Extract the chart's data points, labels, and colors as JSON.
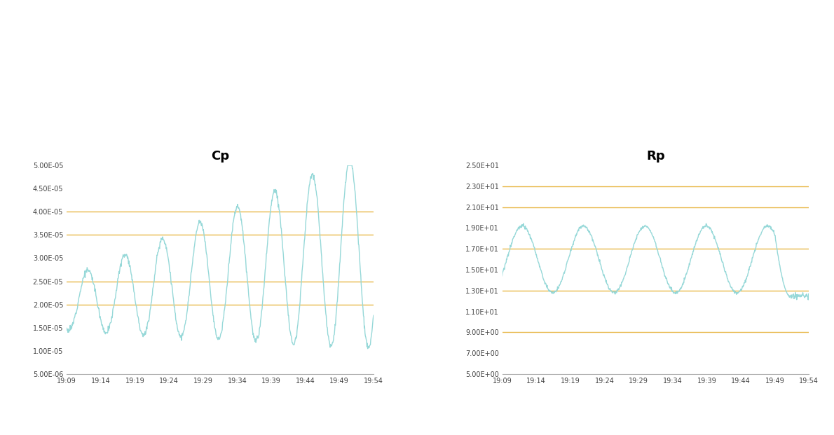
{
  "cp_title": "Cp",
  "rp_title": "Rp",
  "time_labels": [
    "19:09",
    "19:14",
    "19:19",
    "19:24",
    "19:29",
    "19:34",
    "19:39",
    "19:44",
    "19:49",
    "19:54"
  ],
  "cp_yticks": [
    5e-06,
    1e-05,
    1.5e-05,
    2e-05,
    2.5e-05,
    3e-05,
    3.5e-05,
    4e-05,
    4.5e-05,
    5e-05
  ],
  "cp_ytick_labels": [
    "5.00E-06",
    "1.00E-05",
    "1.50E-05",
    "2.00E-05",
    "2.50E-05",
    "3.00E-05",
    "3.50E-05",
    "4.00E-05",
    "4.50E-05",
    "5.00E-05"
  ],
  "cp_ylim": [
    5e-06,
    5e-05
  ],
  "cp_gridlines": [
    2e-05,
    2.5e-05,
    3.5e-05,
    4e-05
  ],
  "rp_yticks": [
    5.0,
    7.0,
    9.0,
    11.0,
    13.0,
    15.0,
    17.0,
    19.0,
    21.0,
    23.0,
    25.0
  ],
  "rp_ytick_labels": [
    "5.00E+00",
    "7.00E+00",
    "9.00E+00",
    "1.10E+01",
    "1.30E+01",
    "1.50E+01",
    "1.70E+01",
    "1.90E+01",
    "2.10E+01",
    "2.30E+01",
    "2.50E+01"
  ],
  "rp_ylim": [
    5.0,
    25.0
  ],
  "rp_gridlines": [
    9.0,
    13.0,
    17.0,
    21.0,
    23.0
  ],
  "line_color": "#96d8d8",
  "gridline_color": "#e8b84b",
  "axis_line_color": "#aaaaaa",
  "bg_color": "#ffffff",
  "title_fontsize": 13,
  "tick_fontsize": 7,
  "title_fontweight": "bold",
  "n_points": 800
}
